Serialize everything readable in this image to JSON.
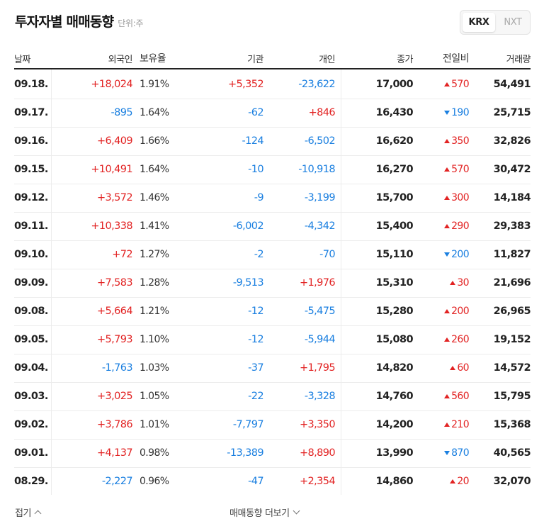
{
  "header": {
    "title": "투자자별 매매동향",
    "unit": "단위:주"
  },
  "market_toggle": {
    "options": [
      "KRX",
      "NXT"
    ],
    "selected": "KRX"
  },
  "columns": [
    "날짜",
    "외국인",
    "보유율",
    "기관",
    "개인",
    "종가",
    "전일비",
    "거래량"
  ],
  "rows": [
    {
      "date": "09.18.",
      "foreign": "+18,024",
      "foreign_dir": "up",
      "holding": "1.91%",
      "institution": "+5,352",
      "institution_dir": "up",
      "individual": "-23,622",
      "individual_dir": "down",
      "close": "17,000",
      "change": "570",
      "change_dir": "up",
      "volume": "54,491"
    },
    {
      "date": "09.17.",
      "foreign": "-895",
      "foreign_dir": "down",
      "holding": "1.64%",
      "institution": "-62",
      "institution_dir": "down",
      "individual": "+846",
      "individual_dir": "up",
      "close": "16,430",
      "change": "190",
      "change_dir": "down",
      "volume": "25,715"
    },
    {
      "date": "09.16.",
      "foreign": "+6,409",
      "foreign_dir": "up",
      "holding": "1.66%",
      "institution": "-124",
      "institution_dir": "down",
      "individual": "-6,502",
      "individual_dir": "down",
      "close": "16,620",
      "change": "350",
      "change_dir": "up",
      "volume": "32,826"
    },
    {
      "date": "09.15.",
      "foreign": "+10,491",
      "foreign_dir": "up",
      "holding": "1.64%",
      "institution": "-10",
      "institution_dir": "down",
      "individual": "-10,918",
      "individual_dir": "down",
      "close": "16,270",
      "change": "570",
      "change_dir": "up",
      "volume": "30,472"
    },
    {
      "date": "09.12.",
      "foreign": "+3,572",
      "foreign_dir": "up",
      "holding": "1.46%",
      "institution": "-9",
      "institution_dir": "down",
      "individual": "-3,199",
      "individual_dir": "down",
      "close": "15,700",
      "change": "300",
      "change_dir": "up",
      "volume": "14,184"
    },
    {
      "date": "09.11.",
      "foreign": "+10,338",
      "foreign_dir": "up",
      "holding": "1.41%",
      "institution": "-6,002",
      "institution_dir": "down",
      "individual": "-4,342",
      "individual_dir": "down",
      "close": "15,400",
      "change": "290",
      "change_dir": "up",
      "volume": "29,383"
    },
    {
      "date": "09.10.",
      "foreign": "+72",
      "foreign_dir": "up",
      "holding": "1.27%",
      "institution": "-2",
      "institution_dir": "down",
      "individual": "-70",
      "individual_dir": "down",
      "close": "15,110",
      "change": "200",
      "change_dir": "down",
      "volume": "11,827"
    },
    {
      "date": "09.09.",
      "foreign": "+7,583",
      "foreign_dir": "up",
      "holding": "1.28%",
      "institution": "-9,513",
      "institution_dir": "down",
      "individual": "+1,976",
      "individual_dir": "up",
      "close": "15,310",
      "change": "30",
      "change_dir": "up",
      "volume": "21,696"
    },
    {
      "date": "09.08.",
      "foreign": "+5,664",
      "foreign_dir": "up",
      "holding": "1.21%",
      "institution": "-12",
      "institution_dir": "down",
      "individual": "-5,475",
      "individual_dir": "down",
      "close": "15,280",
      "change": "200",
      "change_dir": "up",
      "volume": "26,965"
    },
    {
      "date": "09.05.",
      "foreign": "+5,793",
      "foreign_dir": "up",
      "holding": "1.10%",
      "institution": "-12",
      "institution_dir": "down",
      "individual": "-5,944",
      "individual_dir": "down",
      "close": "15,080",
      "change": "260",
      "change_dir": "up",
      "volume": "19,152"
    },
    {
      "date": "09.04.",
      "foreign": "-1,763",
      "foreign_dir": "down",
      "holding": "1.03%",
      "institution": "-37",
      "institution_dir": "down",
      "individual": "+1,795",
      "individual_dir": "up",
      "close": "14,820",
      "change": "60",
      "change_dir": "up",
      "volume": "14,572"
    },
    {
      "date": "09.03.",
      "foreign": "+3,025",
      "foreign_dir": "up",
      "holding": "1.05%",
      "institution": "-22",
      "institution_dir": "down",
      "individual": "-3,328",
      "individual_dir": "down",
      "close": "14,760",
      "change": "560",
      "change_dir": "up",
      "volume": "15,795"
    },
    {
      "date": "09.02.",
      "foreign": "+3,786",
      "foreign_dir": "up",
      "holding": "1.01%",
      "institution": "-7,797",
      "institution_dir": "down",
      "individual": "+3,350",
      "individual_dir": "up",
      "close": "14,200",
      "change": "210",
      "change_dir": "up",
      "volume": "15,368"
    },
    {
      "date": "09.01.",
      "foreign": "+4,137",
      "foreign_dir": "up",
      "holding": "0.98%",
      "institution": "-13,389",
      "institution_dir": "down",
      "individual": "+8,890",
      "individual_dir": "up",
      "close": "13,990",
      "change": "870",
      "change_dir": "down",
      "volume": "40,565"
    },
    {
      "date": "08.29.",
      "foreign": "-2,227",
      "foreign_dir": "down",
      "holding": "0.96%",
      "institution": "-47",
      "institution_dir": "down",
      "individual": "+2,354",
      "individual_dir": "up",
      "close": "14,860",
      "change": "20",
      "change_dir": "up",
      "volume": "32,070"
    }
  ],
  "colors": {
    "up": "#e22323",
    "down": "#1a7fe0"
  },
  "footer": {
    "collapse_label": "접기",
    "more_label": "매매동향 더보기"
  }
}
